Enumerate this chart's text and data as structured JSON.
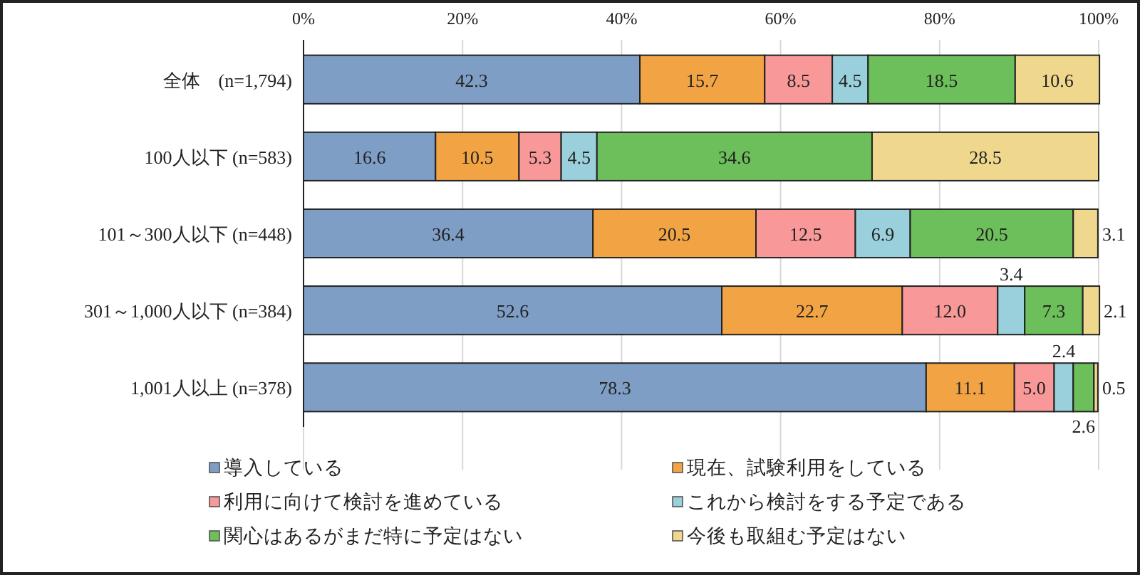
{
  "chart_data": {
    "type": "bar",
    "orientation": "horizontal",
    "stacked": true,
    "grid": "x",
    "legend": "bottom",
    "categories": [
      "全体　(n=1,794)",
      "100人以下 (n=583)",
      "101～300人以下 (n=448)",
      "301～1,000人以下 (n=384)",
      "1,001人以上 (n=378)"
    ],
    "xlim": [
      0,
      100
    ],
    "xticks": [
      {
        "value": 0,
        "label": "0%"
      },
      {
        "value": 20,
        "label": "20%"
      },
      {
        "value": 40,
        "label": "40%"
      },
      {
        "value": 60,
        "label": "60%"
      },
      {
        "value": 80,
        "label": "80%"
      },
      {
        "value": 100,
        "label": "100%"
      }
    ],
    "series": [
      {
        "name": "導入している",
        "color": "#7f9ec6",
        "values": [
          42.3,
          16.6,
          36.4,
          52.6,
          78.3
        ],
        "value_labels": [
          "42.3",
          "16.6",
          "36.4",
          "52.6",
          "78.3"
        ]
      },
      {
        "name": "現在、試験利用をしている",
        "color": "#f2a444",
        "values": [
          15.7,
          10.5,
          20.5,
          22.7,
          11.1
        ],
        "value_labels": [
          "15.7",
          "10.5",
          "20.5",
          "22.7",
          "11.1"
        ]
      },
      {
        "name": "利用に向けて検討を進めている",
        "color": "#f89898",
        "values": [
          8.5,
          5.3,
          12.5,
          12.0,
          5.0
        ],
        "value_labels": [
          "8.5",
          "5.3",
          "12.5",
          "12.0",
          "5.0"
        ]
      },
      {
        "name": "これから検討をする予定である",
        "color": "#99d0dc",
        "values": [
          4.5,
          4.5,
          6.9,
          3.4,
          2.4
        ],
        "value_labels": [
          "4.5",
          "4.5",
          "6.9",
          "3.4",
          "2.4"
        ]
      },
      {
        "name": "関心はあるがまだ特に予定はない",
        "color": "#6cbf5a",
        "values": [
          18.5,
          34.6,
          20.5,
          7.3,
          2.6
        ],
        "value_labels": [
          "18.5",
          "34.6",
          "20.5",
          "7.3",
          "2.6"
        ]
      },
      {
        "name": "今後も取組む予定はない",
        "color": "#efd88e",
        "values": [
          10.6,
          28.5,
          3.1,
          2.1,
          0.5
        ],
        "value_labels": [
          "10.6",
          "28.5",
          "3.1",
          "2.1",
          "0.5"
        ]
      }
    ]
  }
}
